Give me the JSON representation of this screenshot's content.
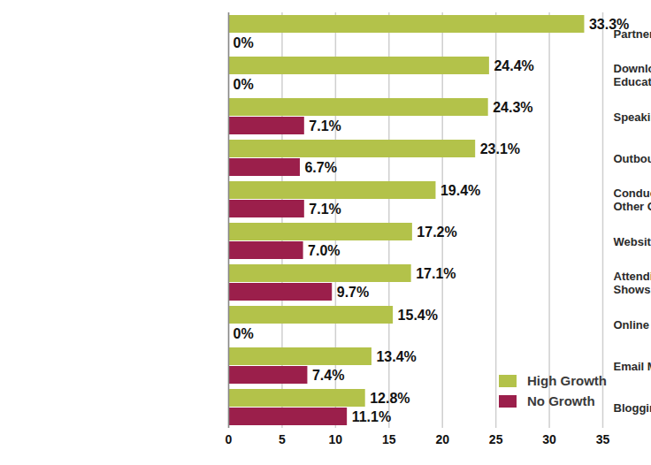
{
  "chart_data": {
    "type": "bar",
    "orientation": "horizontal",
    "categories": [
      "Partnership Marketing",
      "Downloadable,\nEducational Content",
      "Speaking Engagements",
      "Outbound Phone Marketing",
      "Conducting Webinars or\nOther Online Educational Events",
      "Website",
      "Attending Conferences, Trade\nShows, or Other Networking Events",
      "Online Advertising",
      "Email Marketing",
      "Blogging"
    ],
    "series": [
      {
        "name": "High Growth",
        "color": "#b3c24a",
        "values": [
          33.3,
          24.4,
          24.3,
          23.1,
          19.4,
          17.2,
          17.1,
          15.4,
          13.4,
          12.8
        ],
        "value_labels": [
          "33.3%",
          "24.4%",
          "24.3%",
          "23.1%",
          "19.4%",
          "17.2%",
          "17.1%",
          "15.4%",
          "13.4%",
          "12.8%"
        ]
      },
      {
        "name": "No Growth",
        "color": "#9b1f4b",
        "values": [
          0,
          0,
          7.1,
          6.7,
          7.1,
          7.0,
          9.7,
          0,
          7.4,
          11.1
        ],
        "value_labels": [
          "0%",
          "0%",
          "7.1%",
          "6.7%",
          "7.1%",
          "7.0%",
          "9.7%",
          "0%",
          "7.4%",
          "11.1%"
        ]
      }
    ],
    "xlim": [
      0,
      35
    ],
    "xticks": [
      0,
      5,
      10,
      15,
      20,
      25,
      30,
      35
    ],
    "grid": true,
    "legend": "lower right",
    "data_labels": true
  }
}
